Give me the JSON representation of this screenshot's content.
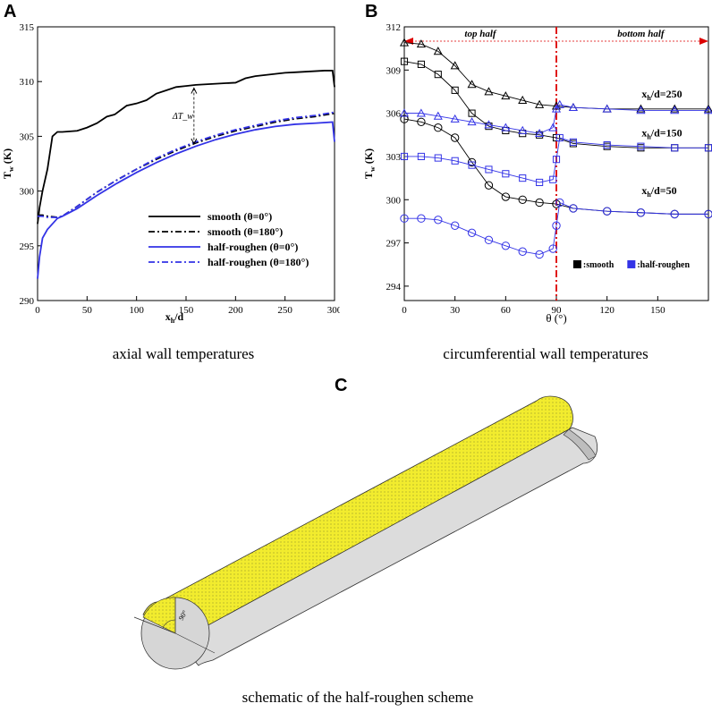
{
  "panels": {
    "a": {
      "letter": "A",
      "caption": "axial wall temperatures"
    },
    "b": {
      "letter": "B",
      "caption": "circumferential wall temperatures"
    },
    "c": {
      "letter": "C",
      "caption": "schematic of the half-roughen scheme",
      "angle_label": "90°"
    }
  },
  "colors": {
    "smooth": "#000000",
    "rough": "#3333e6",
    "divider": "#dd0000",
    "surface": "#f2ec2e"
  },
  "chart_data": [
    {
      "type": "line",
      "xlabel": "x_h/d",
      "ylabel": "T_w (K)",
      "xlim": [
        0,
        300
      ],
      "ylim": [
        290,
        315
      ],
      "xticks": [
        0,
        50,
        100,
        150,
        200,
        250,
        300
      ],
      "yticks": [
        290,
        295,
        300,
        305,
        310,
        315
      ],
      "annotation": "ΔT_w",
      "series": [
        {
          "name": "smooth (θ=0°)",
          "color": "#000000",
          "dash": "solid",
          "x": [
            0,
            2,
            5,
            10,
            15,
            20,
            25,
            40,
            50,
            60,
            70,
            78,
            90,
            100,
            110,
            120,
            130,
            140,
            150,
            160,
            170,
            180,
            190,
            200,
            210,
            220,
            230,
            240,
            250,
            260,
            270,
            280,
            290,
            298,
            300
          ],
          "y": [
            297.0,
            298.5,
            300.0,
            302.0,
            305.0,
            305.4,
            305.4,
            305.5,
            305.8,
            306.2,
            306.8,
            307.0,
            307.8,
            308.0,
            308.3,
            308.9,
            309.2,
            309.5,
            309.6,
            309.7,
            309.75,
            309.8,
            309.85,
            309.9,
            310.3,
            310.5,
            310.6,
            310.7,
            310.8,
            310.85,
            310.9,
            310.95,
            311.0,
            311.0,
            309.5
          ]
        },
        {
          "name": "smooth (θ=180°)",
          "color": "#000000",
          "dash": "dashdot",
          "x": [
            0,
            5,
            10,
            20,
            25,
            40,
            60,
            80,
            100,
            120,
            140,
            160,
            180,
            200,
            220,
            240,
            260,
            280,
            300
          ],
          "y": [
            297.8,
            297.8,
            297.7,
            297.6,
            297.7,
            298.6,
            299.9,
            301.0,
            302.0,
            302.9,
            303.7,
            304.4,
            305.0,
            305.5,
            305.9,
            306.3,
            306.6,
            306.8,
            307.1
          ]
        },
        {
          "name": "half-roughen (θ=0°)",
          "color": "#3333e6",
          "dash": "solid",
          "x": [
            0,
            2,
            5,
            10,
            15,
            20,
            25,
            40,
            60,
            80,
            100,
            120,
            140,
            160,
            180,
            200,
            220,
            240,
            260,
            280,
            298,
            300
          ],
          "y": [
            292.0,
            294.0,
            295.7,
            296.5,
            297.0,
            297.5,
            297.7,
            298.4,
            299.6,
            300.7,
            301.7,
            302.6,
            303.4,
            304.1,
            304.7,
            305.2,
            305.6,
            305.9,
            306.1,
            306.2,
            306.3,
            304.5
          ]
        },
        {
          "name": "half-roughen (θ=180°)",
          "color": "#3333e6",
          "dash": "dashdot",
          "x": [
            0,
            5,
            10,
            20,
            25,
            40,
            60,
            80,
            100,
            120,
            140,
            160,
            180,
            200,
            220,
            240,
            260,
            280,
            300
          ],
          "y": [
            297.7,
            297.7,
            297.6,
            297.6,
            297.7,
            298.6,
            299.9,
            301.0,
            302.0,
            303.0,
            303.8,
            304.5,
            305.1,
            305.6,
            306.0,
            306.4,
            306.7,
            306.9,
            307.2
          ]
        }
      ]
    },
    {
      "type": "scatter",
      "xlabel": "θ (°)",
      "ylabel": "T_w (K)",
      "xlim": [
        0,
        180
      ],
      "ylim": [
        293,
        312
      ],
      "xticks": [
        0,
        30,
        60,
        90,
        120,
        150
      ],
      "yticks": [
        294,
        297,
        300,
        303,
        306,
        309,
        312
      ],
      "region_labels": {
        "left": "top half",
        "right": "bottom half"
      },
      "divider_x": 90,
      "legend": [
        {
          "label": ":smooth",
          "color": "#000000"
        },
        {
          "label": ":half-roughen",
          "color": "#3333e6"
        }
      ],
      "curve_labels": [
        {
          "text": "x_h/d=250",
          "x": 150,
          "y": 307.1
        },
        {
          "text": "x_h/d=150",
          "x": 150,
          "y": 304.4
        },
        {
          "text": "x_h/d=50",
          "x": 150,
          "y": 300.4
        }
      ],
      "series": [
        {
          "name": "smooth x_h/d=250",
          "color": "#000000",
          "marker": "triangle",
          "x": [
            0,
            10,
            20,
            30,
            40,
            50,
            60,
            70,
            80,
            90,
            100,
            120,
            140,
            160,
            180
          ],
          "y": [
            310.9,
            310.8,
            310.3,
            309.3,
            308.0,
            307.5,
            307.2,
            306.9,
            306.6,
            306.5,
            306.4,
            306.3,
            306.3,
            306.3,
            306.3
          ]
        },
        {
          "name": "smooth x_h/d=150",
          "color": "#000000",
          "marker": "square",
          "x": [
            0,
            10,
            20,
            30,
            40,
            50,
            60,
            70,
            80,
            90,
            100,
            120,
            140,
            160,
            180
          ],
          "y": [
            309.6,
            309.4,
            308.7,
            307.6,
            306.0,
            305.1,
            304.8,
            304.6,
            304.5,
            304.3,
            303.9,
            303.7,
            303.6,
            303.6,
            303.6
          ]
        },
        {
          "name": "smooth x_h/d=50",
          "color": "#000000",
          "marker": "circle",
          "x": [
            0,
            10,
            20,
            30,
            40,
            50,
            60,
            70,
            80,
            90,
            100,
            120,
            140,
            160,
            180
          ],
          "y": [
            305.6,
            305.4,
            305.0,
            304.3,
            302.6,
            301.0,
            300.2,
            300.0,
            299.8,
            299.7,
            299.4,
            299.2,
            299.1,
            299.0,
            299.0
          ]
        },
        {
          "name": "half-roughen x_h/d=250",
          "color": "#3333e6",
          "marker": "triangle",
          "x": [
            0,
            10,
            20,
            30,
            40,
            50,
            60,
            70,
            80,
            88,
            90,
            92,
            100,
            120,
            140,
            160,
            180
          ],
          "y": [
            306.0,
            306.0,
            305.8,
            305.6,
            305.4,
            305.2,
            305.0,
            304.8,
            304.6,
            305.0,
            306.3,
            306.6,
            306.4,
            306.3,
            306.2,
            306.2,
            306.2
          ]
        },
        {
          "name": "half-roughen x_h/d=150",
          "color": "#3333e6",
          "marker": "square",
          "x": [
            0,
            10,
            20,
            30,
            40,
            50,
            60,
            70,
            80,
            88,
            90,
            92,
            100,
            120,
            140,
            160,
            180
          ],
          "y": [
            303.0,
            303.0,
            302.9,
            302.7,
            302.4,
            302.1,
            301.8,
            301.5,
            301.2,
            301.4,
            302.8,
            304.3,
            304.0,
            303.8,
            303.7,
            303.6,
            303.6
          ]
        },
        {
          "name": "half-roughen x_h/d=50",
          "color": "#3333e6",
          "marker": "circle",
          "x": [
            0,
            10,
            20,
            30,
            40,
            50,
            60,
            70,
            80,
            88,
            90,
            92,
            100,
            120,
            140,
            160,
            180
          ],
          "y": [
            298.7,
            298.7,
            298.6,
            298.2,
            297.7,
            297.2,
            296.8,
            296.4,
            296.2,
            296.6,
            298.2,
            299.8,
            299.4,
            299.2,
            299.1,
            299.0,
            299.0
          ]
        }
      ]
    }
  ]
}
